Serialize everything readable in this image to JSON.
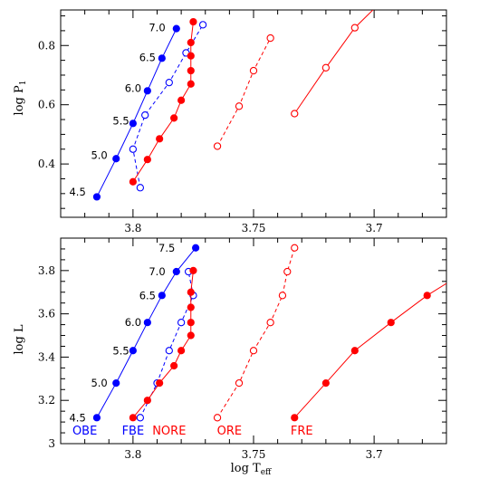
{
  "chart_data": [
    {
      "type": "line",
      "panel": "top",
      "xlabel": "",
      "ylabel": "log P",
      "ylabel_sub": "1",
      "xlim": [
        3.83,
        3.67
      ],
      "ylim": [
        0.22,
        0.92
      ],
      "xticks": [
        3.8,
        3.75,
        3.7
      ],
      "xtick_labels": [
        "3.8",
        "3.75",
        "3.7"
      ],
      "yticks": [
        0.4,
        0.6,
        0.8
      ],
      "ytick_labels": [
        "0.4",
        "0.6",
        "0.8"
      ],
      "colors": {
        "blue": "#0000ff",
        "red": "#ff0000"
      },
      "series": [
        {
          "key": "OBE",
          "color": "#0000ff",
          "dashed": false,
          "marker": "filled",
          "x": [
            3.815,
            3.807,
            3.8,
            3.794,
            3.788,
            3.782
          ],
          "y": [
            0.289,
            0.418,
            0.537,
            0.647,
            0.757,
            0.857
          ]
        },
        {
          "key": "FBE",
          "color": "#0000ff",
          "dashed": true,
          "marker": "open",
          "x": [
            3.797,
            3.8,
            3.795,
            3.785,
            3.778,
            3.771
          ],
          "y": [
            0.32,
            0.45,
            0.565,
            0.675,
            0.775,
            0.87
          ]
        },
        {
          "key": "NORE",
          "color": "#ff0000",
          "dashed": false,
          "marker": "filled",
          "x": [
            3.8,
            3.794,
            3.789,
            3.783,
            3.78,
            3.776,
            3.776,
            3.776,
            3.776,
            3.775
          ],
          "y": [
            0.34,
            0.415,
            0.485,
            0.555,
            0.615,
            0.67,
            0.715,
            0.765,
            0.81,
            0.88
          ]
        },
        {
          "key": "ORE",
          "color": "#ff0000",
          "dashed": true,
          "marker": "open",
          "x": [
            3.765,
            3.756,
            3.75,
            3.743
          ],
          "y": [
            0.46,
            0.595,
            0.715,
            0.825
          ]
        },
        {
          "key": "FRE",
          "color": "#ff0000",
          "dashed": false,
          "marker": "open",
          "x": [
            3.733,
            3.72,
            3.708,
            3.693
          ],
          "y": [
            0.57,
            0.725,
            0.86,
            0.98
          ]
        }
      ],
      "mass_labels": [
        {
          "text": "4.5",
          "x": 3.823,
          "y": 0.305
        },
        {
          "text": "5.0",
          "x": 3.814,
          "y": 0.43
        },
        {
          "text": "5.5",
          "x": 3.805,
          "y": 0.545
        },
        {
          "text": "6.0",
          "x": 3.8,
          "y": 0.655
        },
        {
          "text": "6.5",
          "x": 3.794,
          "y": 0.76
        },
        {
          "text": "7.0",
          "x": 3.79,
          "y": 0.86
        }
      ]
    },
    {
      "type": "line",
      "panel": "bottom",
      "xlabel": "log T",
      "xlabel_sub": "eff",
      "ylabel": "log L",
      "xlim": [
        3.83,
        3.67
      ],
      "ylim": [
        3.0,
        3.95
      ],
      "xticks": [
        3.8,
        3.75,
        3.7
      ],
      "xtick_labels": [
        "3.8",
        "3.75",
        "3.7"
      ],
      "yticks": [
        3.0,
        3.2,
        3.4,
        3.6,
        3.8
      ],
      "ytick_labels": [
        "3",
        "3.2",
        "3.4",
        "3.6",
        "3.8"
      ],
      "series": [
        {
          "key": "OBE",
          "color": "#0000ff",
          "dashed": false,
          "marker": "filled",
          "x": [
            3.815,
            3.807,
            3.8,
            3.794,
            3.788,
            3.782,
            3.774
          ],
          "y": [
            3.12,
            3.28,
            3.43,
            3.56,
            3.685,
            3.795,
            3.905
          ]
        },
        {
          "key": "FBE",
          "color": "#0000ff",
          "dashed": true,
          "marker": "open",
          "x": [
            3.797,
            3.79,
            3.785,
            3.78,
            3.775,
            3.777
          ],
          "y": [
            3.12,
            3.28,
            3.43,
            3.56,
            3.685,
            3.795
          ]
        },
        {
          "key": "NORE",
          "color": "#ff0000",
          "dashed": false,
          "marker": "filled",
          "x": [
            3.8,
            3.794,
            3.789,
            3.783,
            3.78,
            3.776,
            3.776,
            3.776,
            3.776,
            3.775
          ],
          "y": [
            3.12,
            3.2,
            3.28,
            3.36,
            3.43,
            3.5,
            3.56,
            3.63,
            3.7,
            3.8
          ]
        },
        {
          "key": "ORE",
          "color": "#ff0000",
          "dashed": true,
          "marker": "open",
          "x": [
            3.765,
            3.756,
            3.75,
            3.743,
            3.738,
            3.736,
            3.733
          ],
          "y": [
            3.12,
            3.28,
            3.43,
            3.56,
            3.685,
            3.795,
            3.905
          ]
        },
        {
          "key": "FRE",
          "color": "#ff0000",
          "dashed": false,
          "marker": "filled",
          "x": [
            3.733,
            3.72,
            3.708,
            3.693,
            3.678,
            3.66
          ],
          "y": [
            3.12,
            3.28,
            3.43,
            3.56,
            3.685,
            3.81
          ]
        }
      ],
      "mass_labels": [
        {
          "text": "4.5",
          "x": 3.823,
          "y": 3.12
        },
        {
          "text": "5.0",
          "x": 3.814,
          "y": 3.28
        },
        {
          "text": "5.5",
          "x": 3.805,
          "y": 3.43
        },
        {
          "text": "6.0",
          "x": 3.8,
          "y": 3.56
        },
        {
          "text": "6.5",
          "x": 3.794,
          "y": 3.685
        },
        {
          "text": "7.0",
          "x": 3.79,
          "y": 3.795
        },
        {
          "text": "7.5",
          "x": 3.786,
          "y": 3.905
        }
      ],
      "series_labels": [
        {
          "text": "OBE",
          "color": "#0000ff",
          "x": 3.82
        },
        {
          "text": "FBE",
          "color": "#0000ff",
          "x": 3.8
        },
        {
          "text": "NORE",
          "color": "#ff0000",
          "x": 3.785
        },
        {
          "text": "ORE",
          "color": "#ff0000",
          "x": 3.76
        },
        {
          "text": "FRE",
          "color": "#ff0000",
          "x": 3.73
        }
      ]
    }
  ]
}
